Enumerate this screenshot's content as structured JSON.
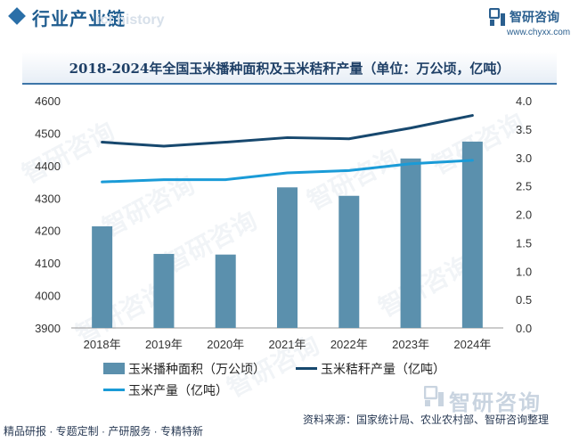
{
  "header": {
    "title": "行业产业链",
    "watermark": "ict history",
    "brand_name": "智研咨询",
    "brand_url": "www.chyxx.com"
  },
  "watermark_text": "智研咨询",
  "chart_data": {
    "type": "bar",
    "title": "2018-2024年全国玉米播种面积及玉米秸秆产量（单位：万公顷，亿吨）",
    "categories": [
      "2018年",
      "2019年",
      "2020年",
      "2021年",
      "2022年",
      "2023年",
      "2024年"
    ],
    "series": [
      {
        "name": "玉米播种面积（万公顷）",
        "type": "bar",
        "axis": "left",
        "color": "#5b90ad",
        "values": [
          4213,
          4128,
          4126,
          4333,
          4307,
          4422,
          4474
        ]
      },
      {
        "name": "玉米秸秆产量（亿吨）",
        "type": "line",
        "axis": "right",
        "color": "#17486e",
        "values": [
          3.27,
          3.2,
          3.27,
          3.35,
          3.33,
          3.52,
          3.74
        ]
      },
      {
        "name": "玉米产量（亿吨）",
        "type": "line",
        "axis": "right",
        "color": "#1a9bd7",
        "values": [
          2.57,
          2.61,
          2.61,
          2.73,
          2.77,
          2.89,
          2.95
        ]
      }
    ],
    "y_left": {
      "range": [
        3900,
        4600
      ],
      "ticks": [
        "3900",
        "4000",
        "4100",
        "4200",
        "4300",
        "4400",
        "4500",
        "4600"
      ]
    },
    "y_right": {
      "range": [
        0.0,
        4.0
      ],
      "ticks": [
        "0.0",
        "0.5",
        "1.0",
        "1.5",
        "2.0",
        "2.5",
        "3.0",
        "3.5",
        "4.0"
      ]
    },
    "legend_position": "bottom"
  },
  "footer": {
    "left_text": "精品研报 · 专题定制 · 产研服务 · 专精特新",
    "source": "资料来源：国家统计局、农业农村部、智研咨询整理",
    "brand": "智研咨询"
  },
  "colors": {
    "accent": "#1e5c8f",
    "bar": "#5b90ad",
    "line_dark": "#17486e",
    "line_light": "#1a9bd7"
  }
}
